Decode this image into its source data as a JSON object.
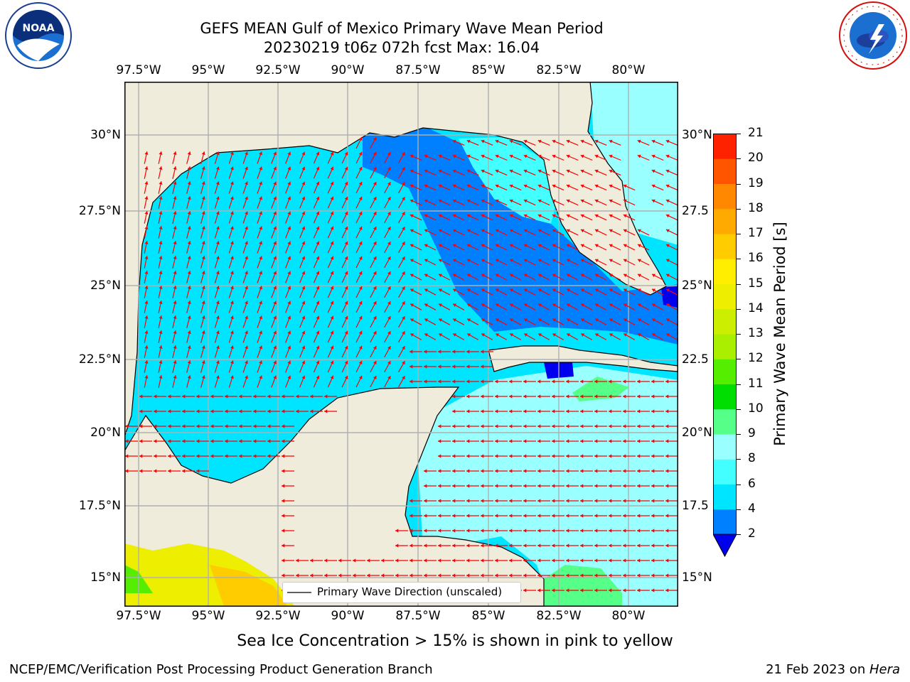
{
  "header": {
    "title_line1": "GEFS MEAN Gulf of Mexico Primary Wave Mean Period",
    "title_line2": "20230219 t06z 072h fcst   Max: 16.04"
  },
  "logos": {
    "noaa_text": "NOAA",
    "noaa_ring": "NATIONAL OCEANIC AND ATMOSPHERIC ADMINISTRATION · U.S. DEPARTMENT OF COMMERCE",
    "nws_ring": "NATIONAL WEATHER SERVICE"
  },
  "map": {
    "lon_labels": [
      "97.5°W",
      "95°W",
      "92.5°W",
      "90°W",
      "87.5°W",
      "85°W",
      "82.5°W",
      "80°W"
    ],
    "lat_labels_left": [
      "30°N",
      "27.5°N",
      "25°N",
      "22.5°N",
      "20°N",
      "17.5°N",
      "15°N"
    ],
    "lat_labels_right": [
      "30°N",
      "27.5",
      "25°N",
      "22.5",
      "20°N",
      "17.5",
      "15°N"
    ],
    "legend": "Primary Wave Direction (unscaled)",
    "land_color": "#efecdc",
    "arrow_color": "#ff0000"
  },
  "colorbar": {
    "label": "Primary Wave Mean Period [s]",
    "ticks": [
      "2",
      "4",
      "6",
      "8",
      "9",
      "10",
      "11",
      "12",
      "13",
      "14",
      "15",
      "16",
      "17",
      "18",
      "19",
      "20",
      "21"
    ],
    "colors": [
      "#0080ff",
      "#00e5ff",
      "#44ffff",
      "#99ffff",
      "#55ff88",
      "#00dd00",
      "#55ee00",
      "#aaee00",
      "#ccee00",
      "#eeee00",
      "#ffee00",
      "#ffcc00",
      "#ffaa00",
      "#ff8800",
      "#ff5500",
      "#ff2200"
    ],
    "under_color": "#0000ee"
  },
  "footer": {
    "sea_ice_note": "Sea Ice Concentration > 15% is shown in pink to yellow",
    "branch": "NCEP/EMC/Verification Post Processing Product Generation Branch",
    "date": "21 Feb 2023 on ",
    "host": "Hera"
  }
}
